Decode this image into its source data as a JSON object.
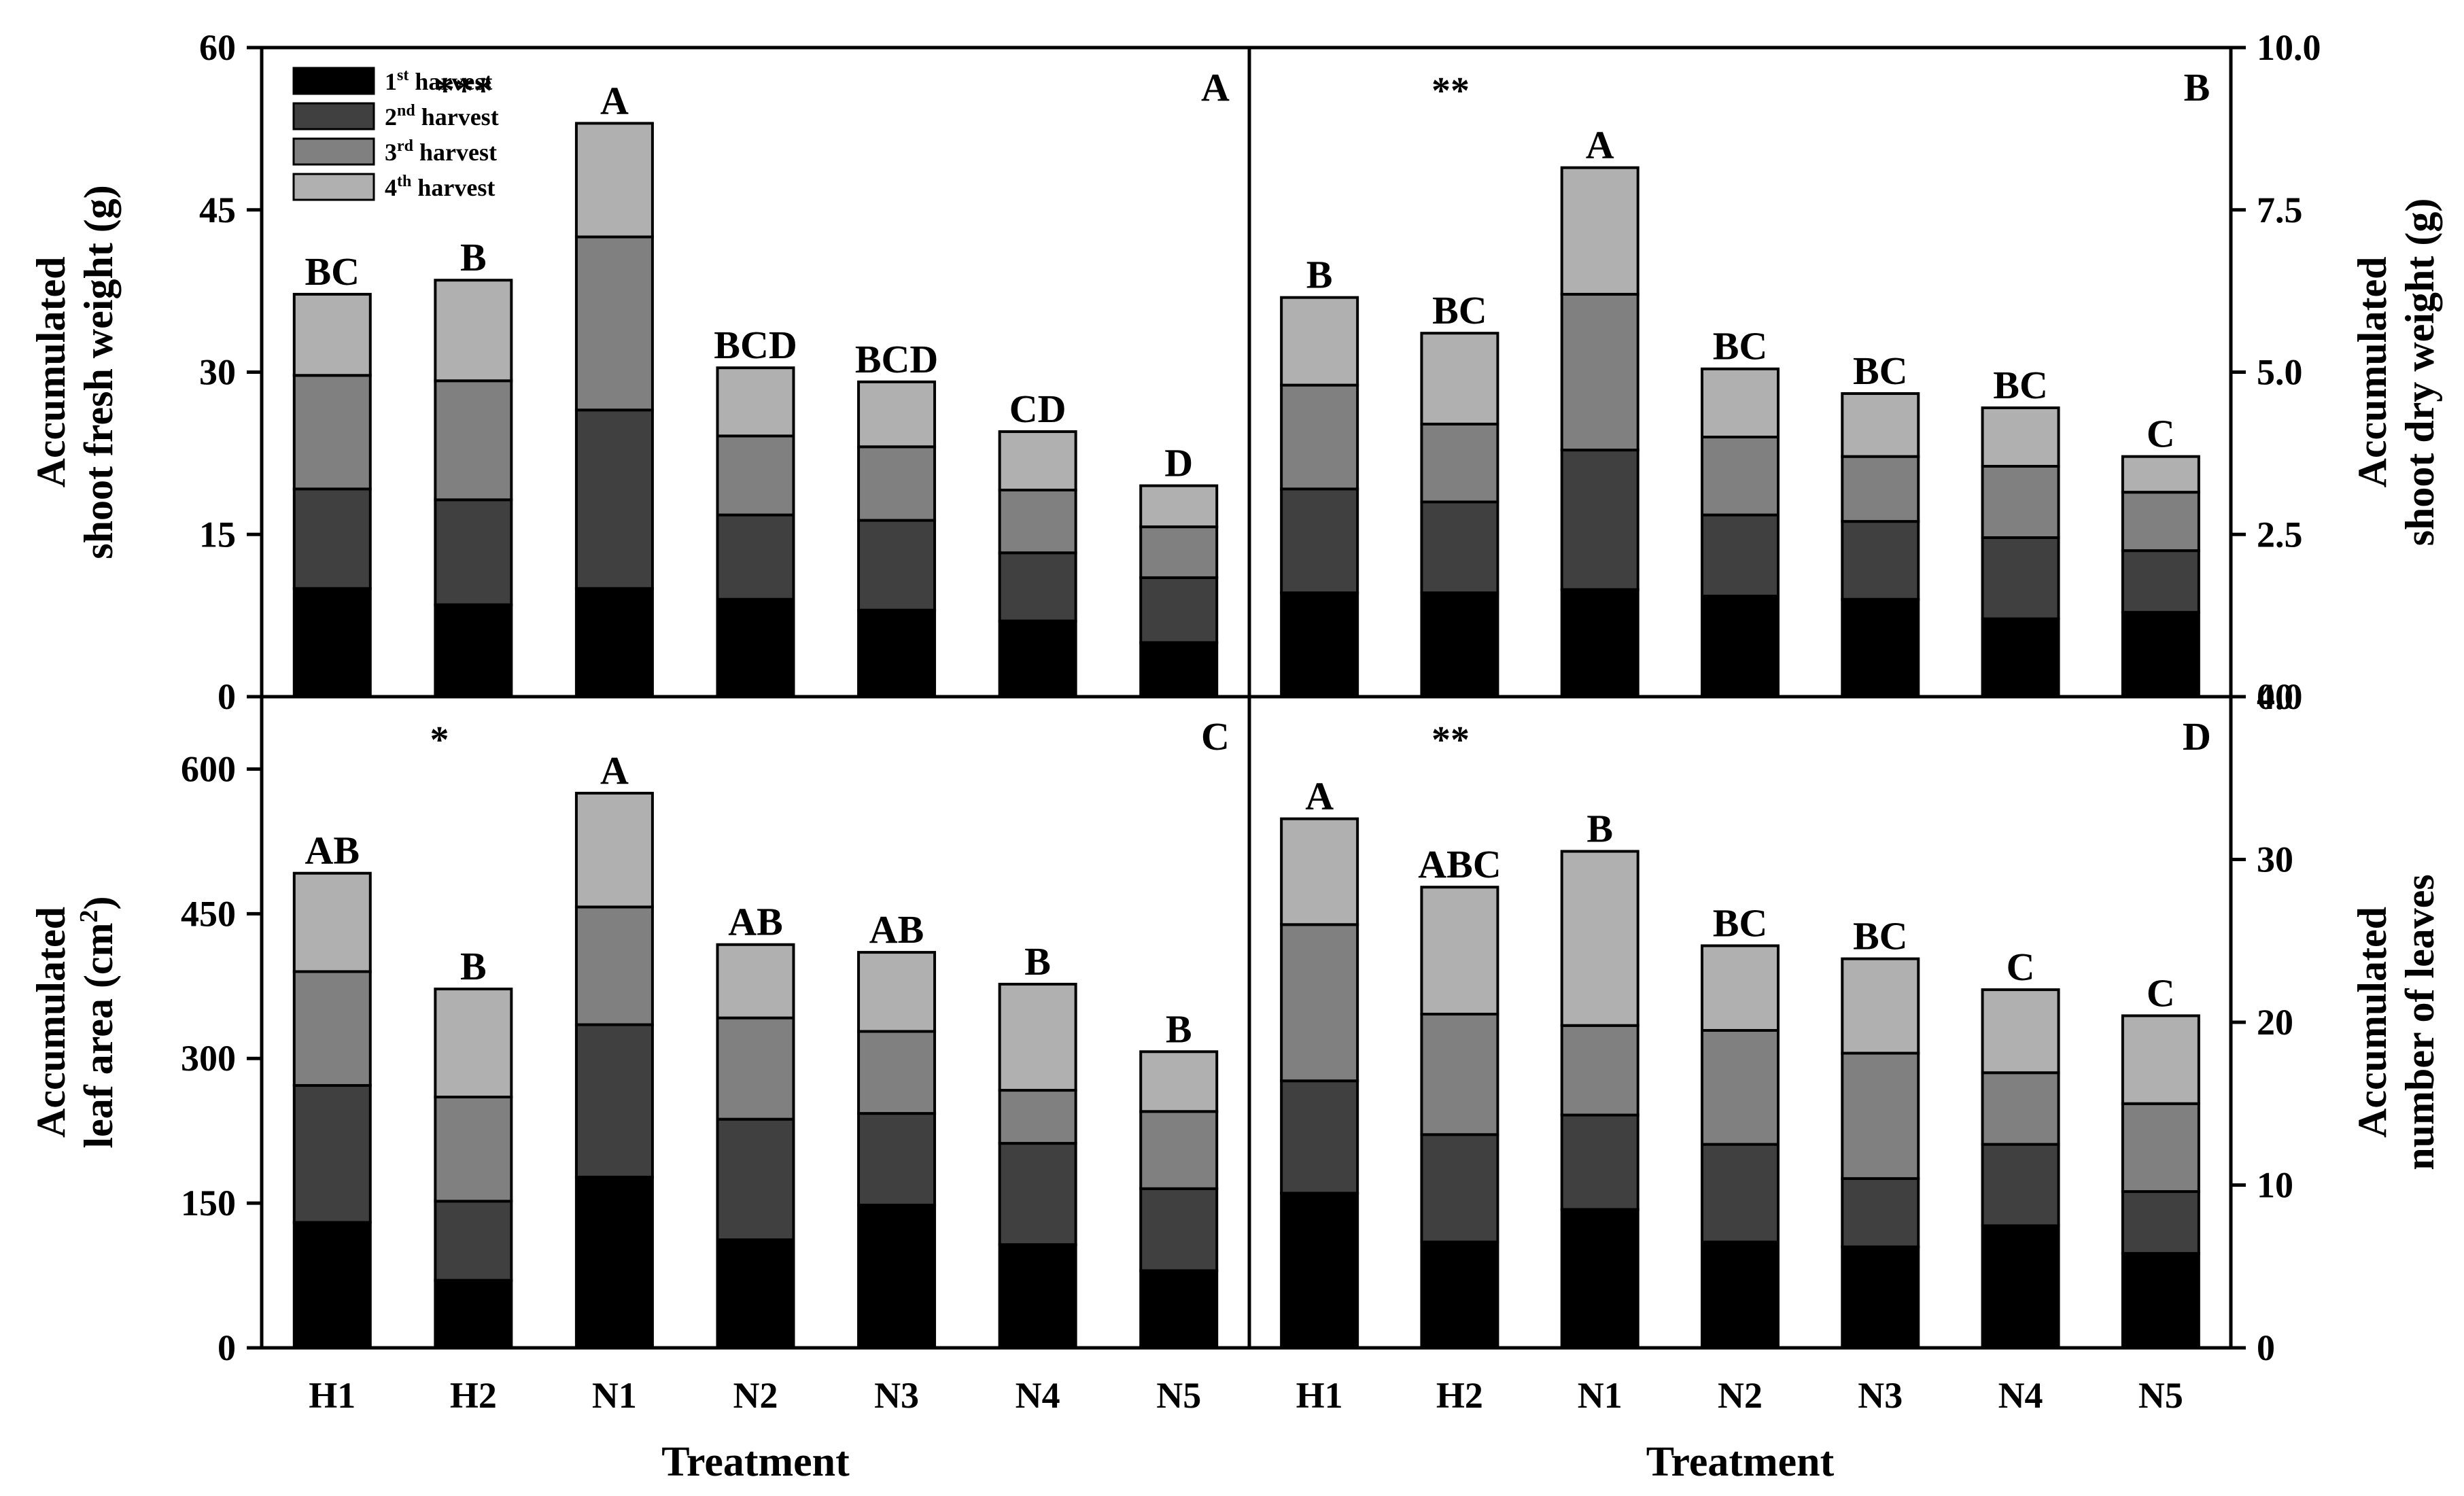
{
  "chart_data": {
    "type": "bar",
    "stacked": true,
    "categories": [
      "H1",
      "H2",
      "N1",
      "N2",
      "N3",
      "N4",
      "N5"
    ],
    "legend": {
      "placement": "top-left of panel A",
      "entries": [
        {
          "base": "1",
          "sup": "st",
          "rest": " harvest",
          "color": "#000000"
        },
        {
          "base": "2",
          "sup": "nd",
          "rest": " harvest",
          "color": "#404040"
        },
        {
          "base": "3",
          "sup": "rd",
          "rest": " harvest",
          "color": "#808080"
        },
        {
          "base": "4",
          "sup": "th",
          "rest": " harvest",
          "color": "#b0b0b0"
        }
      ]
    },
    "xlabel": "Treatment",
    "panels": [
      {
        "id": "A",
        "label": "A",
        "significance": "***",
        "ylabel_lines": [
          "Accumulated",
          "shoot fresh weight (g)"
        ],
        "ylim": [
          0,
          60
        ],
        "yticks": [
          0,
          15,
          30,
          45,
          60
        ],
        "ytick_labels": [
          "0",
          "15",
          "30",
          "45",
          "60"
        ],
        "series": [
          {
            "name": "1st harvest",
            "values": [
              10,
              8.5,
              10,
              9,
              8,
              7,
              5
            ]
          },
          {
            "name": "2nd harvest",
            "values": [
              9.2,
              9.7,
              16.5,
              7.8,
              8.3,
              6.3,
              6
            ]
          },
          {
            "name": "3rd harvest",
            "values": [
              10.5,
              11,
              16,
              7.3,
              6.8,
              5.8,
              4.7
            ]
          },
          {
            "name": "4th harvest",
            "values": [
              7.5,
              9.3,
              10.5,
              6.3,
              6,
              5.4,
              3.8
            ]
          }
        ],
        "letters": [
          "BC",
          "B",
          "A",
          "BCD",
          "BCD",
          "CD",
          "D"
        ]
      },
      {
        "id": "B",
        "label": "B",
        "significance": "**",
        "ylabel_lines": [
          "Accumulated",
          "shoot dry weight (g)"
        ],
        "ylim": [
          0,
          10
        ],
        "yticks": [
          0,
          2.5,
          5,
          7.5,
          10
        ],
        "ytick_labels": [
          "0.0",
          "2.5",
          "5.0",
          "7.5",
          "10.0"
        ],
        "series": [
          {
            "name": "1st harvest",
            "values": [
              1.6,
              1.6,
              1.65,
              1.55,
              1.5,
              1.2,
              1.3
            ]
          },
          {
            "name": "2nd harvest",
            "values": [
              1.6,
              1.4,
              2.15,
              1.25,
              1.2,
              1.25,
              0.95
            ]
          },
          {
            "name": "3rd harvest",
            "values": [
              1.6,
              1.2,
              2.4,
              1.2,
              1,
              1.1,
              0.9
            ]
          },
          {
            "name": "4th harvest",
            "values": [
              1.35,
              1.4,
              1.95,
              1.05,
              0.97,
              0.9,
              0.55
            ]
          }
        ],
        "letters": [
          "B",
          "BC",
          "A",
          "BC",
          "BC",
          "BC",
          "C"
        ]
      },
      {
        "id": "C",
        "label": "C",
        "significance": "*",
        "ylabel_lines": [
          "Accumulated",
          "leaf area (cm2)"
        ],
        "ylabel_sup": "2",
        "ylim": [
          0,
          675
        ],
        "yticks": [
          0,
          150,
          300,
          450,
          600
        ],
        "ytick_labels": [
          "0",
          "150",
          "300",
          "450",
          "600"
        ],
        "series": [
          {
            "name": "1st harvest",
            "values": [
              130,
              70,
              177,
              112,
              148,
              107,
              80
            ]
          },
          {
            "name": "2nd harvest",
            "values": [
              142,
              82,
              158,
              125,
              95,
              105,
              85
            ]
          },
          {
            "name": "3rd harvest",
            "values": [
              118,
              108,
              122,
              105,
              85,
              55,
              80
            ]
          },
          {
            "name": "4th harvest",
            "values": [
              102,
              112,
              118,
              76,
              82,
              110,
              62
            ]
          }
        ],
        "letters": [
          "AB",
          "B",
          "A",
          "AB",
          "AB",
          "B",
          "B"
        ]
      },
      {
        "id": "D",
        "label": "D",
        "significance": "**",
        "ylabel_lines": [
          "Accumulated",
          "number of leaves"
        ],
        "ylim": [
          0,
          40
        ],
        "yticks": [
          0,
          10,
          20,
          30,
          40
        ],
        "ytick_labels": [
          "0",
          "10",
          "20",
          "30",
          "40"
        ],
        "series": [
          {
            "name": "1st harvest",
            "values": [
              9.5,
              6.5,
              8.5,
              6.5,
              6.2,
              7.5,
              5.8
            ]
          },
          {
            "name": "2nd harvest",
            "values": [
              6.9,
              6.6,
              5.8,
              6,
              4.2,
              5,
              3.8
            ]
          },
          {
            "name": "3rd harvest",
            "values": [
              9.6,
              7.4,
              5.5,
              7,
              7.7,
              4.4,
              5.4
            ]
          },
          {
            "name": "4th harvest",
            "values": [
              6.5,
              7.8,
              10.7,
              5.2,
              5.8,
              5.1,
              5.4
            ]
          }
        ],
        "letters": [
          "A",
          "ABC",
          "B",
          "BC",
          "BC",
          "C",
          "C"
        ]
      }
    ]
  }
}
